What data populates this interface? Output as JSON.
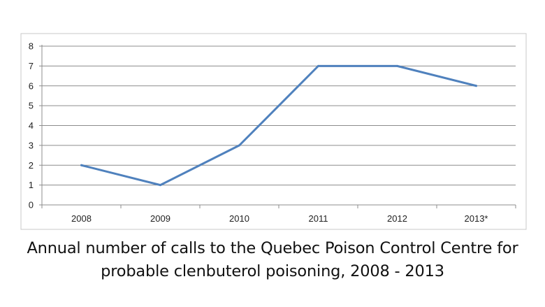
{
  "caption": {
    "line1": "Annual number of calls to the Quebec Poison Control Centre for",
    "line2": "probable clenbuterol poisoning, 2008 - 2013"
  },
  "chart_data": {
    "type": "line",
    "title": "Annual number of calls to the Quebec Poison Control Centre for probable clenbuterol poisoning, 2008 - 2013",
    "xlabel": "",
    "ylabel": "",
    "categories": [
      "2008",
      "2009",
      "2010",
      "2011",
      "2012",
      "2013*"
    ],
    "series": [
      {
        "values": [
          2,
          1,
          3,
          7,
          7,
          6
        ]
      }
    ],
    "ylim": [
      0,
      8
    ],
    "yticks": [
      "0",
      "1",
      "2",
      "3",
      "4",
      "5",
      "6",
      "7",
      "8"
    ],
    "grid": true,
    "legend": "none",
    "colors": {
      "line": "#4f81bd",
      "grid": "#8c8c8c",
      "frame": "#c8c8c8",
      "text": "#222222"
    }
  }
}
